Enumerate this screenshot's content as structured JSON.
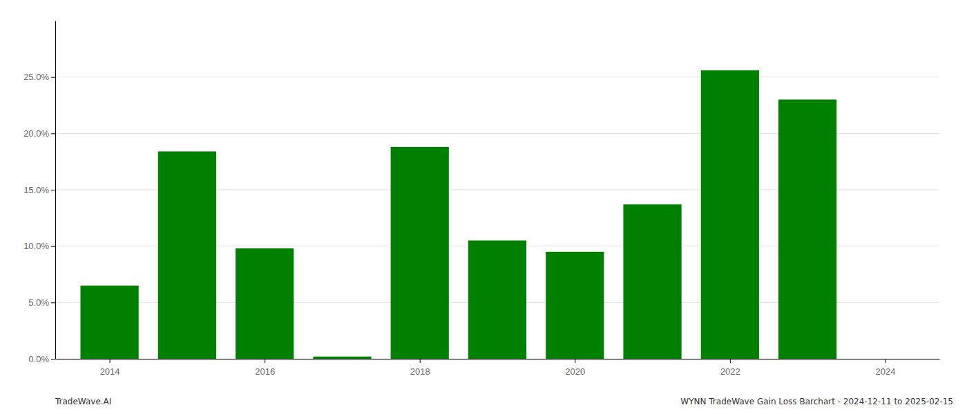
{
  "chart_data": {
    "type": "bar",
    "x": [
      2014,
      2015,
      2016,
      2017,
      2018,
      2019,
      2020,
      2021,
      2022,
      2023
    ],
    "values": [
      0.065,
      0.184,
      0.098,
      0.002,
      0.188,
      0.105,
      0.095,
      0.137,
      0.256,
      0.23
    ],
    "color": "#008000",
    "xlim": [
      2013.3,
      2024.7
    ],
    "xticks": [
      2014,
      2016,
      2018,
      2020,
      2022,
      2024
    ],
    "ylim": [
      0,
      0.3
    ],
    "yticks": [
      {
        "value": 0.0,
        "label": "0.0%"
      },
      {
        "value": 0.05,
        "label": "5.0%"
      },
      {
        "value": 0.1,
        "label": "10.0%"
      },
      {
        "value": 0.15,
        "label": "15.0%"
      },
      {
        "value": 0.2,
        "label": "20.0%"
      },
      {
        "value": 0.25,
        "label": "25.0%"
      }
    ],
    "grid": true,
    "annotations": [
      "TradeWave.AI",
      "WYNN TradeWave Gain Loss Barchart - 2024-12-11 to 2025-02-15"
    ]
  }
}
